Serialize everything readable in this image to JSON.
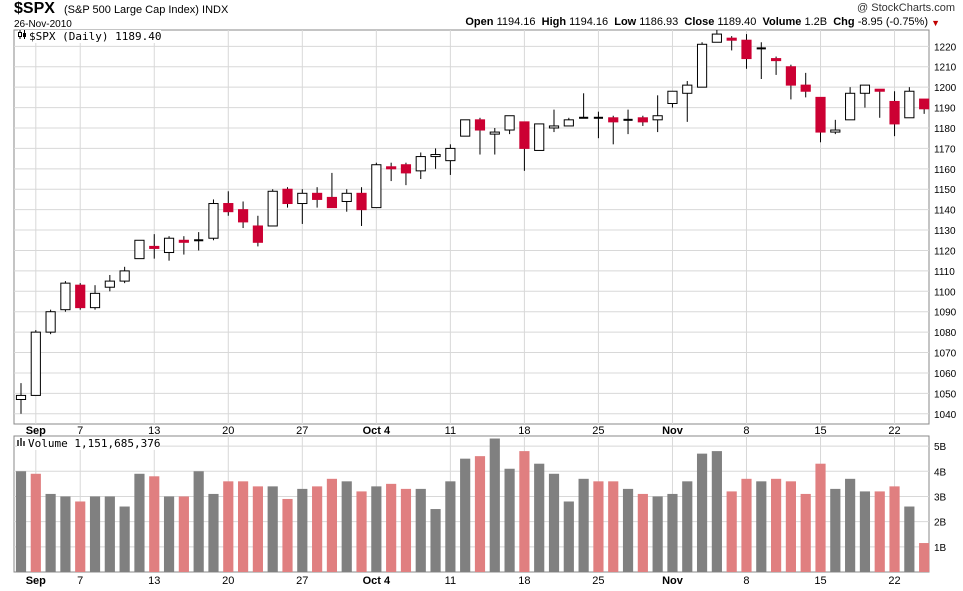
{
  "header": {
    "symbol": "$SPX",
    "description": "(S&P 500 Large Cap Index)",
    "exchange": "INDX",
    "date": "26-Nov-2010",
    "credit": "@ StockCharts.com",
    "open_label": "Open",
    "open": "1194.16",
    "high_label": "High",
    "high": "1194.16",
    "low_label": "Low",
    "low": "1186.93",
    "close_label": "Close",
    "close": "1189.40",
    "volume_label": "Volume",
    "volume": "1.2B",
    "chg_label": "Chg",
    "chg": "-8.95 (-0.75%)"
  },
  "price_legend": "$SPX (Daily) 1189.40",
  "volume_legend": "Volume 1,151,685,376",
  "colors": {
    "up_candle": "#ffffff",
    "down_candle": "#cc0033",
    "volume_up": "#808080",
    "volume_down": "#e07f80",
    "grid": "#d8d8d8",
    "change_down": "#c00000"
  },
  "chart_data": [
    {
      "type": "candlestick",
      "title": "$SPX (Daily) 1189.40",
      "ylim": [
        1035,
        1228
      ],
      "yticks": [
        1040,
        1050,
        1060,
        1070,
        1080,
        1090,
        1100,
        1110,
        1120,
        1130,
        1140,
        1150,
        1160,
        1170,
        1180,
        1190,
        1200,
        1210,
        1220
      ],
      "y_axis_position": "right",
      "grid": true,
      "xtick_labels": [
        {
          "index": 1,
          "label": "Sep"
        },
        {
          "index": 4,
          "label": "7"
        },
        {
          "index": 9,
          "label": "13"
        },
        {
          "index": 14,
          "label": "20"
        },
        {
          "index": 19,
          "label": "27"
        },
        {
          "index": 24,
          "label": "Oct 4"
        },
        {
          "index": 29,
          "label": "11"
        },
        {
          "index": 34,
          "label": "18"
        },
        {
          "index": 39,
          "label": "25"
        },
        {
          "index": 44,
          "label": "Nov"
        },
        {
          "index": 49,
          "label": "8"
        },
        {
          "index": 54,
          "label": "15"
        },
        {
          "index": 59,
          "label": "22"
        }
      ],
      "candles": [
        {
          "o": 1047,
          "h": 1055,
          "l": 1040,
          "c": 1049
        },
        {
          "o": 1049,
          "h": 1081,
          "l": 1049,
          "c": 1080
        },
        {
          "o": 1080,
          "h": 1091,
          "l": 1079,
          "c": 1090
        },
        {
          "o": 1091,
          "h": 1105,
          "l": 1090,
          "c": 1104
        },
        {
          "o": 1103,
          "h": 1104,
          "l": 1091,
          "c": 1092
        },
        {
          "o": 1092,
          "h": 1103,
          "l": 1091,
          "c": 1099
        },
        {
          "o": 1102,
          "h": 1108,
          "l": 1100,
          "c": 1105
        },
        {
          "o": 1105,
          "h": 1112,
          "l": 1104,
          "c": 1110
        },
        {
          "o": 1116,
          "h": 1125,
          "l": 1116,
          "c": 1125
        },
        {
          "o": 1122,
          "h": 1128,
          "l": 1116,
          "c": 1121
        },
        {
          "o": 1119,
          "h": 1127,
          "l": 1115,
          "c": 1126
        },
        {
          "o": 1125,
          "h": 1127,
          "l": 1118,
          "c": 1124
        },
        {
          "o": 1125,
          "h": 1129,
          "l": 1120,
          "c": 1125
        },
        {
          "o": 1126,
          "h": 1145,
          "l": 1125,
          "c": 1143
        },
        {
          "o": 1143,
          "h": 1149,
          "l": 1137,
          "c": 1139
        },
        {
          "o": 1140,
          "h": 1144,
          "l": 1131,
          "c": 1134
        },
        {
          "o": 1132,
          "h": 1137,
          "l": 1122,
          "c": 1124
        },
        {
          "o": 1132,
          "h": 1150,
          "l": 1132,
          "c": 1149
        },
        {
          "o": 1150,
          "h": 1151,
          "l": 1141,
          "c": 1143
        },
        {
          "o": 1143,
          "h": 1150,
          "l": 1133,
          "c": 1148
        },
        {
          "o": 1148,
          "h": 1151,
          "l": 1141,
          "c": 1145
        },
        {
          "o": 1146,
          "h": 1158,
          "l": 1141,
          "c": 1141
        },
        {
          "o": 1144,
          "h": 1150,
          "l": 1139,
          "c": 1148
        },
        {
          "o": 1148,
          "h": 1151,
          "l": 1132,
          "c": 1140
        },
        {
          "o": 1141,
          "h": 1163,
          "l": 1141,
          "c": 1162
        },
        {
          "o": 1161,
          "h": 1163,
          "l": 1154,
          "c": 1160
        },
        {
          "o": 1162,
          "h": 1163,
          "l": 1152,
          "c": 1158
        },
        {
          "o": 1159,
          "h": 1168,
          "l": 1155,
          "c": 1166
        },
        {
          "o": 1166,
          "h": 1170,
          "l": 1160,
          "c": 1167
        },
        {
          "o": 1164,
          "h": 1172,
          "l": 1157,
          "c": 1170
        },
        {
          "o": 1176,
          "h": 1184,
          "l": 1176,
          "c": 1184
        },
        {
          "o": 1184,
          "h": 1185,
          "l": 1167,
          "c": 1179
        },
        {
          "o": 1177,
          "h": 1180,
          "l": 1167,
          "c": 1178
        },
        {
          "o": 1179,
          "h": 1186,
          "l": 1177,
          "c": 1186
        },
        {
          "o": 1183,
          "h": 1183,
          "l": 1159,
          "c": 1170
        },
        {
          "o": 1169,
          "h": 1182,
          "l": 1169,
          "c": 1182
        },
        {
          "o": 1180,
          "h": 1189,
          "l": 1178,
          "c": 1181
        },
        {
          "o": 1181,
          "h": 1185,
          "l": 1181,
          "c": 1184
        },
        {
          "o": 1185,
          "h": 1197,
          "l": 1185,
          "c": 1185
        },
        {
          "o": 1185,
          "h": 1188,
          "l": 1175,
          "c": 1185
        },
        {
          "o": 1185,
          "h": 1186,
          "l": 1172,
          "c": 1183
        },
        {
          "o": 1184,
          "h": 1189,
          "l": 1177,
          "c": 1184
        },
        {
          "o": 1185,
          "h": 1186,
          "l": 1181,
          "c": 1183
        },
        {
          "o": 1184,
          "h": 1196,
          "l": 1178,
          "c": 1186
        },
        {
          "o": 1192,
          "h": 1198,
          "l": 1190,
          "c": 1198
        },
        {
          "o": 1197,
          "h": 1203,
          "l": 1183,
          "c": 1201
        },
        {
          "o": 1200,
          "h": 1222,
          "l": 1200,
          "c": 1221
        },
        {
          "o": 1222,
          "h": 1228,
          "l": 1222,
          "c": 1226
        },
        {
          "o": 1224,
          "h": 1225,
          "l": 1218,
          "c": 1223
        },
        {
          "o": 1223,
          "h": 1226,
          "l": 1209,
          "c": 1214
        },
        {
          "o": 1219,
          "h": 1222,
          "l": 1204,
          "c": 1219
        },
        {
          "o": 1214,
          "h": 1215,
          "l": 1206,
          "c": 1213
        },
        {
          "o": 1210,
          "h": 1211,
          "l": 1194,
          "c": 1201
        },
        {
          "o": 1201,
          "h": 1207,
          "l": 1195,
          "c": 1198
        },
        {
          "o": 1195,
          "h": 1195,
          "l": 1173,
          "c": 1178
        },
        {
          "o": 1178,
          "h": 1184,
          "l": 1177,
          "c": 1179
        },
        {
          "o": 1184,
          "h": 1200,
          "l": 1184,
          "c": 1197
        },
        {
          "o": 1197,
          "h": 1200,
          "l": 1190,
          "c": 1201
        },
        {
          "o": 1199,
          "h": 1199,
          "l": 1185,
          "c": 1198
        },
        {
          "o": 1193,
          "h": 1198,
          "l": 1176,
          "c": 1182
        },
        {
          "o": 1185,
          "h": 1200,
          "l": 1185,
          "c": 1198
        },
        {
          "o": 1194.16,
          "h": 1194.16,
          "l": 1186.93,
          "c": 1189.4
        }
      ]
    },
    {
      "type": "bar",
      "title": "Volume 1,151,685,376",
      "ylim": [
        0,
        5.4
      ],
      "yticks": [
        1,
        2,
        3,
        4,
        5
      ],
      "ytick_labels": [
        "1B",
        "2B",
        "3B",
        "4B",
        "5B"
      ],
      "y_axis_position": "right",
      "grid": true,
      "unit": "billion shares",
      "values": [
        4.0,
        3.9,
        3.1,
        3.0,
        2.8,
        3.0,
        3.0,
        2.6,
        3.9,
        3.8,
        3.0,
        3.0,
        4.0,
        3.1,
        3.6,
        3.6,
        3.4,
        3.4,
        2.9,
        3.3,
        3.4,
        3.7,
        3.6,
        3.2,
        3.4,
        3.5,
        3.3,
        3.3,
        2.5,
        3.6,
        4.5,
        4.6,
        5.3,
        4.1,
        4.8,
        4.3,
        3.9,
        2.8,
        3.7,
        3.6,
        3.6,
        3.3,
        3.1,
        3.0,
        3.1,
        3.6,
        4.7,
        4.8,
        3.2,
        3.7,
        3.6,
        3.7,
        3.6,
        3.1,
        4.3,
        3.3,
        3.7,
        3.2,
        3.2,
        3.4,
        2.6,
        1.15
      ],
      "colors": [
        "up",
        "down",
        "up",
        "up",
        "down",
        "up",
        "up",
        "up",
        "up",
        "down",
        "up",
        "down",
        "up",
        "up",
        "down",
        "down",
        "down",
        "up",
        "down",
        "up",
        "down",
        "down",
        "up",
        "down",
        "up",
        "down",
        "down",
        "up",
        "up",
        "up",
        "up",
        "down",
        "up",
        "up",
        "down",
        "up",
        "up",
        "up",
        "up",
        "down",
        "down",
        "up",
        "down",
        "up",
        "up",
        "up",
        "up",
        "up",
        "down",
        "down",
        "up",
        "down",
        "down",
        "down",
        "down",
        "up",
        "up",
        "up",
        "down",
        "down",
        "up",
        "down"
      ]
    }
  ]
}
